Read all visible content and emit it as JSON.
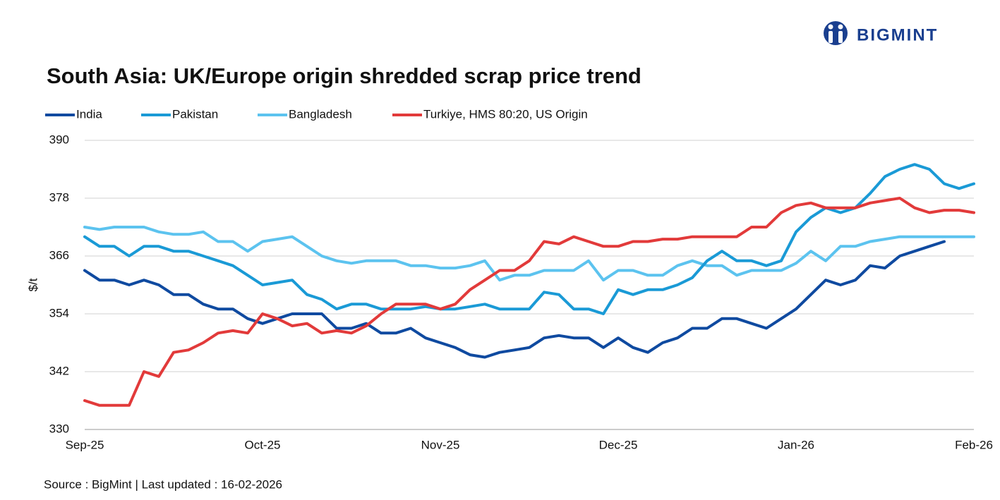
{
  "brand": "BIGMINT",
  "chart_data": {
    "type": "line",
    "title": "South Asia: UK/Europe origin shredded scrap price trend",
    "y_label": "$/t",
    "source": "Source : BigMint | Last updated : 16-02-2026",
    "categories": [
      "Sep-25",
      null,
      null,
      null,
      null,
      null,
      null,
      null,
      null,
      null,
      null,
      null,
      "Oct-25",
      null,
      null,
      null,
      null,
      null,
      null,
      null,
      null,
      null,
      null,
      null,
      "Nov-25",
      null,
      null,
      null,
      null,
      null,
      null,
      null,
      null,
      null,
      null,
      null,
      "Dec-25",
      null,
      null,
      null,
      null,
      null,
      null,
      null,
      null,
      null,
      null,
      null,
      "Jan-26",
      null,
      null,
      null,
      null,
      null,
      null,
      null,
      null,
      null,
      null,
      null,
      "Feb-26"
    ],
    "series": [
      {
        "name": "India",
        "color": "#0f4aa0",
        "values": [
          363,
          361,
          361,
          360,
          361,
          360,
          358,
          358,
          356,
          355,
          355,
          353,
          352,
          353,
          354,
          354,
          354,
          351,
          351,
          352,
          350,
          350,
          351,
          349,
          348,
          347,
          345.5,
          345,
          346,
          346.5,
          347,
          349,
          349.5,
          349,
          349,
          347,
          349,
          347,
          346,
          348,
          349,
          351,
          351,
          353,
          353,
          352,
          351,
          353,
          355,
          358,
          361,
          360,
          361,
          364,
          363.5,
          366,
          367,
          368,
          369,
          null,
          null
        ]
      },
      {
        "name": "Pakistan",
        "color": "#1a9ad6",
        "values": [
          370,
          368,
          368,
          366,
          368,
          368,
          367,
          367,
          366,
          365,
          364,
          362,
          360,
          360.5,
          361,
          358,
          357,
          355,
          356,
          356,
          355,
          355,
          355,
          355.5,
          355,
          355,
          355.5,
          356,
          355,
          355,
          355,
          358.5,
          358,
          355,
          355,
          354,
          359,
          358,
          359,
          359,
          360,
          361.5,
          365,
          367,
          365,
          365,
          364,
          365,
          371,
          374,
          376,
          375,
          376,
          379,
          382.5,
          384,
          385,
          384,
          381,
          380,
          381
        ]
      },
      {
        "name": "Bangladesh",
        "color": "#5cc3ef",
        "values": [
          372,
          371.5,
          372,
          372,
          372,
          371,
          370.5,
          370.5,
          371,
          369,
          369,
          367,
          369,
          369.5,
          370,
          368,
          366,
          365,
          364.5,
          365,
          365,
          365,
          364,
          364,
          363.5,
          363.5,
          364,
          365,
          361,
          362,
          362,
          363,
          363,
          363,
          365,
          361,
          363,
          363,
          362,
          362,
          364,
          365,
          364,
          364,
          362,
          363,
          363,
          363,
          364.5,
          367,
          365,
          368,
          368,
          369,
          369.5,
          370,
          370,
          370,
          370,
          370,
          370
        ]
      },
      {
        "name": "Turkiye, HMS 80:20, US Origin",
        "color": "#e23a3a",
        "values": [
          336,
          335,
          335,
          335,
          342,
          341,
          346,
          346.5,
          348,
          350,
          350.5,
          350,
          354,
          353,
          351.5,
          352,
          350,
          350.5,
          350,
          351.5,
          354,
          356,
          356,
          356,
          355,
          356,
          359,
          361,
          363,
          363,
          365,
          369,
          368.5,
          370,
          369,
          368,
          368,
          369,
          369,
          369.5,
          369.5,
          370,
          370,
          370,
          370,
          372,
          372,
          375,
          376.5,
          377,
          376,
          376,
          376,
          377,
          377.5,
          378,
          376,
          375,
          375.5,
          375.5,
          375
        ]
      }
    ],
    "ylim": [
      330,
      390
    ],
    "yticks": [
      330,
      342,
      354,
      366,
      378,
      390
    ],
    "grid": true
  }
}
